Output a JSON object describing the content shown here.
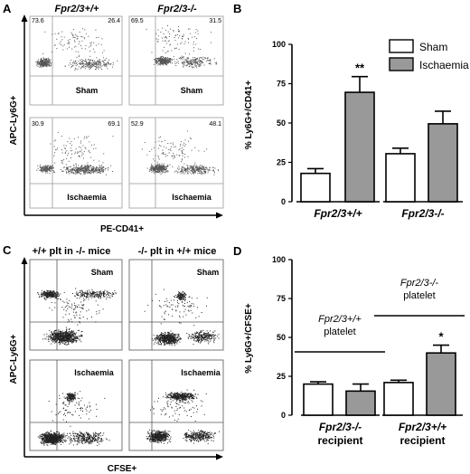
{
  "panels": {
    "a": {
      "letter": "A",
      "col_headers": [
        "Fpr2/3+/+",
        "Fpr2/3-/-"
      ],
      "ylabel": "APC-Ly6G+",
      "xlabel": "PE-CD41+",
      "plots": [
        {
          "label": "Sham",
          "q_left": "73.6",
          "q_right": "26.4"
        },
        {
          "label": "Sham",
          "q_left": "69.5",
          "q_right": "31.5"
        },
        {
          "label": "Ischaemia",
          "q_left": "30.9",
          "q_right": "69.1"
        },
        {
          "label": "Ischaemia",
          "q_left": "52.9",
          "q_right": "48.1"
        }
      ]
    },
    "c": {
      "letter": "C",
      "col_headers": [
        "+/+ plt in -/- mice",
        "-/- plt in +/+ mice"
      ],
      "ylabel": "APC-Ly6G+",
      "xlabel": "CFSE+",
      "plots": [
        {
          "label": "Sham"
        },
        {
          "label": "Sham"
        },
        {
          "label": "Ischaemia"
        },
        {
          "label": "Ischaemia"
        }
      ]
    },
    "b": {
      "letter": "B"
    },
    "d": {
      "letter": "D"
    }
  },
  "chart_data": [
    {
      "id": "B",
      "type": "bar",
      "ylabel": "% Ly6G+/CD41+",
      "ylim": [
        0,
        100
      ],
      "yticks": [
        0,
        25,
        50,
        75,
        100
      ],
      "categories": [
        "Fpr2/3+/+",
        "Fpr2/3-/-"
      ],
      "legend": {
        "position": "top-right",
        "entries": [
          "Sham",
          "Ischaemia"
        ]
      },
      "series": [
        {
          "name": "Sham",
          "color": "#ffffff",
          "values": [
            18,
            30.5
          ],
          "errors": [
            3,
            3.5
          ]
        },
        {
          "name": "Ischaemia",
          "color": "#999999",
          "values": [
            69.5,
            49.5
          ],
          "errors": [
            10,
            8
          ]
        }
      ],
      "annotations": [
        {
          "category": 0,
          "series": 1,
          "text": "**"
        }
      ]
    },
    {
      "id": "D",
      "type": "bar",
      "ylabel": "% Ly6G+/CFSE+",
      "ylim": [
        0,
        100
      ],
      "yticks": [
        0,
        25,
        50,
        75,
        100
      ],
      "categories": [
        "Fpr2/3-/-",
        "Fpr2/3+/+"
      ],
      "category_sublabels": [
        "recipient",
        "recipient"
      ],
      "group_notes": [
        [
          "Fpr2/3+/+",
          "platelet"
        ],
        [
          "Fpr2/3-/-",
          "platelet"
        ]
      ],
      "series": [
        {
          "name": "Sham",
          "color": "#ffffff",
          "values": [
            20,
            21
          ],
          "errors": [
            1.5,
            1.5
          ]
        },
        {
          "name": "Ischaemia",
          "color": "#999999",
          "values": [
            15.5,
            40
          ],
          "errors": [
            4.5,
            5
          ]
        }
      ],
      "annotations": [
        {
          "category": 1,
          "series": 1,
          "text": "*"
        }
      ]
    }
  ]
}
